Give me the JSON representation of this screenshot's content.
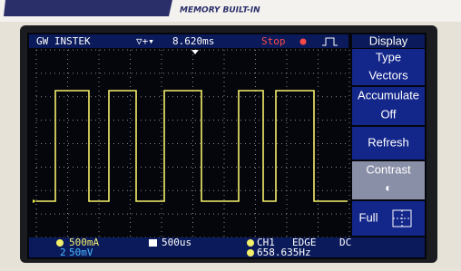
{
  "header": {
    "label": "MEMORY BUILT-IN"
  },
  "status_bar": {
    "brand": "GW INSTEK",
    "time_offset": "8.620ms",
    "run_state": "Stop"
  },
  "menu": {
    "title": "Display",
    "items": [
      {
        "label": "Type",
        "value": "Vectors"
      },
      {
        "label": "Accumulate",
        "value": "Off"
      },
      {
        "label": "Refresh"
      },
      {
        "label": "Contrast"
      },
      {
        "label": "Full"
      }
    ]
  },
  "footer": {
    "ch1_scale": "500mA",
    "ch2_scale": "50mV",
    "timebase": "500us",
    "trigger_source": "CH1",
    "trigger_type": "EDGE",
    "coupling": "DC",
    "frequency": "658.635Hz"
  }
}
